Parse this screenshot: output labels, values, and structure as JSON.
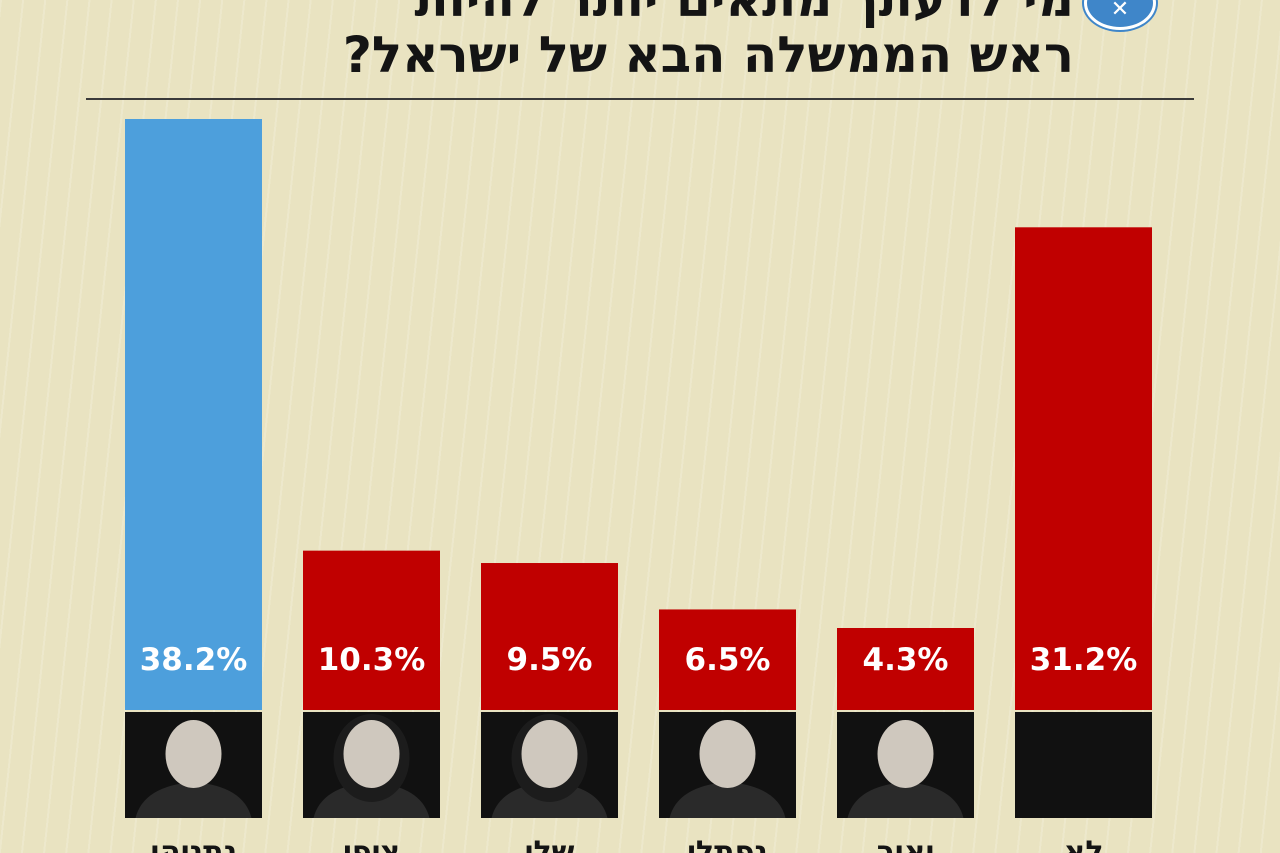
{
  "header": {
    "title_line1": "מי לדעתך מתאים יותר להיות",
    "title_line2": "ראש הממשלה הבא של ישראל?",
    "badge_icon": "x-close-icon"
  },
  "colors": {
    "background": "#e9e3c1",
    "highlight": "#4d9fdc",
    "bar": "#c00000",
    "photo_block": "#111111"
  },
  "chart_data": {
    "type": "bar",
    "title": "מי לדעתך מתאים יותר להיות ראש הממשלה הבא של ישראל?",
    "categories": [
      "נתניהו",
      "ציפי",
      "שלי",
      "נפתלי",
      "יאיר",
      "לא"
    ],
    "values": [
      38.2,
      10.3,
      9.5,
      6.5,
      4.3,
      31.2
    ],
    "value_labels": [
      "38.2%",
      "10.3%",
      "9.5%",
      "6.5%",
      "4.3%",
      "31.2%"
    ],
    "highlight_index": 0,
    "unit": "%",
    "ylim": [
      0,
      38.2
    ],
    "grid": false,
    "legend": "none"
  }
}
